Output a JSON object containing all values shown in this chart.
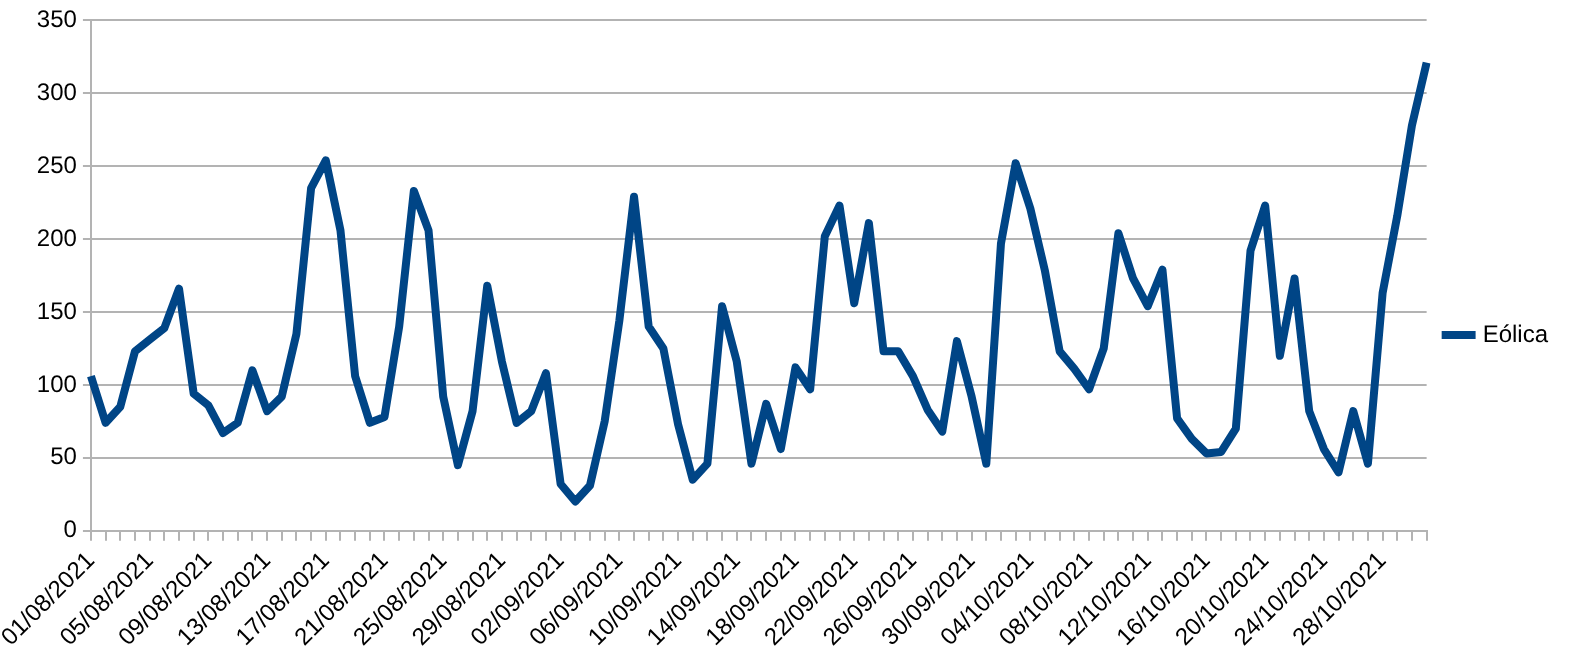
{
  "chart_data": {
    "type": "line",
    "categories": [
      "01/08/2021",
      null,
      null,
      null,
      "05/08/2021",
      null,
      null,
      null,
      "09/08/2021",
      null,
      null,
      null,
      "13/08/2021",
      null,
      null,
      null,
      "17/08/2021",
      null,
      null,
      null,
      "21/08/2021",
      null,
      null,
      null,
      "25/08/2021",
      null,
      null,
      null,
      "29/08/2021",
      null,
      null,
      null,
      "02/09/2021",
      null,
      null,
      null,
      "06/09/2021",
      null,
      null,
      null,
      "10/09/2021",
      null,
      null,
      null,
      "14/09/2021",
      null,
      null,
      null,
      "18/09/2021",
      null,
      null,
      null,
      "22/09/2021",
      null,
      null,
      null,
      "26/09/2021",
      null,
      null,
      null,
      "30/09/2021",
      null,
      null,
      null,
      "04/10/2021",
      null,
      null,
      null,
      "08/10/2021",
      null,
      null,
      null,
      "12/10/2021",
      null,
      null,
      null,
      "16/10/2021",
      null,
      null,
      null,
      "20/10/2021",
      null,
      null,
      null,
      "24/10/2021",
      null,
      null,
      null,
      "28/10/2021",
      null,
      null,
      null
    ],
    "series": [
      {
        "name": "Eólica",
        "color": "#004586",
        "values": [
          106,
          74,
          85,
          123,
          131,
          139,
          166,
          94,
          86,
          67,
          74,
          110,
          82,
          92,
          135,
          235,
          254,
          206,
          106,
          74,
          78,
          140,
          233,
          206,
          92,
          45,
          82,
          168,
          116,
          74,
          82,
          108,
          32,
          20,
          31,
          75,
          144,
          229,
          140,
          125,
          73,
          35,
          46,
          154,
          116,
          46,
          87,
          56,
          112,
          97,
          202,
          223,
          156,
          211,
          123,
          123,
          106,
          83,
          68,
          130,
          92,
          46,
          197,
          252,
          221,
          178,
          123,
          111,
          97,
          125,
          204,
          173,
          154,
          179,
          77,
          63,
          53,
          54,
          70,
          192,
          223,
          120,
          173,
          82,
          56,
          40,
          82,
          46,
          163,
          216,
          278,
          321
        ]
      }
    ],
    "ylim": [
      0,
      350
    ],
    "yticks": [
      0,
      50,
      100,
      150,
      200,
      250,
      300,
      350
    ],
    "grid": "y",
    "legend": "right",
    "marker": "none",
    "line_style": "solid"
  }
}
